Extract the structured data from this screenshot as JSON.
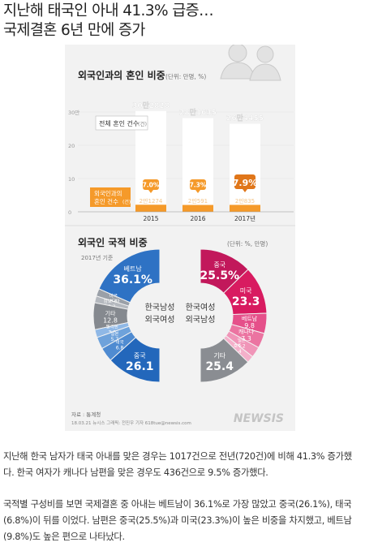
{
  "headline": {
    "line1": "지난해 태국인 아내 41.3% 급증…",
    "line2": "국제결혼 6년 만에 증가"
  },
  "infographic": {
    "section1": {
      "title": "외국인과의 혼인 비중",
      "unit": "(단위: 만명, %)"
    },
    "section2": {
      "title": "외국인 국적 비중",
      "unit": "(단위: %, 만명)",
      "note": "2017년 기준"
    },
    "legend_total": "전체 혼인 건수",
    "legend_total_unit": "(건)",
    "legend_foreign_line1": "외국인과의",
    "legend_foreign_line2": "혼인 건수",
    "legend_foreign_unit": "(건)",
    "source": "자료 : 통계청",
    "credit": "18.03.21 뉴시스 그래픽: 전진우 기자 618tue@newsis.com",
    "watermark": "NEWSIS",
    "donut_left_center_1": "한국남성",
    "donut_left_center_2": "외국여성",
    "donut_right_center_1": "한국여성",
    "donut_right_center_2": "외국남성"
  },
  "chart_data": [
    {
      "type": "bar",
      "title": "외국인과의 혼인 비중",
      "categories": [
        "2015",
        "2016",
        "2017년"
      ],
      "series": [
        {
          "name": "전체 혼인 건수",
          "values": [
            302828,
            281635,
            264455
          ],
          "labels": [
            "30만2828",
            "28만1635",
            "26만4455"
          ]
        },
        {
          "name": "외국인과의 혼인 건수",
          "values": [
            21274,
            20591,
            20835
          ],
          "labels": [
            "2만1274",
            "2만591",
            "2만835"
          ]
        }
      ],
      "share_pct": [
        7.0,
        7.3,
        7.9
      ],
      "share_labels": [
        "7.0%",
        "7.3%",
        "7.9%"
      ],
      "yticks": [
        "30만",
        "20",
        "10",
        "0"
      ],
      "ylim": [
        0,
        300000
      ]
    },
    {
      "type": "pie",
      "title": "한국남성 외국여성",
      "slices": [
        {
          "label": "베트남",
          "value": 36.1,
          "value_label": "36.1%",
          "color": "#2e72c4"
        },
        {
          "label": "미국",
          "value": 3.6,
          "value_label": "3.6",
          "color": "#9aa0a8"
        },
        {
          "label": "캄보디아",
          "value": 3.2,
          "value_label": "3.2",
          "color": "#b4b8be"
        },
        {
          "label": "기타",
          "value": 12.8,
          "value_label": "12.8",
          "color": "#85898f"
        },
        {
          "label": "필리핀",
          "value": 3.8,
          "value_label": "3.8",
          "color": "#8fb8e6"
        },
        {
          "label": "일본",
          "value": 5.7,
          "value_label": "5.7",
          "color": "#6ea2db"
        },
        {
          "label": "태국",
          "value": 6.8,
          "value_label": "6.8",
          "color": "#4f8bd1"
        },
        {
          "label": "중국",
          "value": 26.1,
          "value_label": "26.1",
          "color": "#2367bb"
        }
      ]
    },
    {
      "type": "pie",
      "title": "한국여성 외국남성",
      "slices": [
        {
          "label": "중국",
          "value": 25.5,
          "value_label": "25.5%",
          "color": "#c2185b"
        },
        {
          "label": "미국",
          "value": 23.3,
          "value_label": "23.3",
          "color": "#d81b60"
        },
        {
          "label": "베트남",
          "value": 9.8,
          "value_label": "9.8",
          "color": "#e5508a"
        },
        {
          "label": "캐나다",
          "value": 7.3,
          "value_label": "7.3",
          "color": "#eb74a1"
        },
        {
          "label": "일본",
          "value": 5.2,
          "value_label": "5.2",
          "color": "#f095b8"
        },
        {
          "label": "호주",
          "value": 3.4,
          "value_label": "3.4",
          "color": "#f4b0ca"
        },
        {
          "label": "기타",
          "value": 25.4,
          "value_label": "25.4",
          "color": "#8a8d92"
        }
      ]
    }
  ],
  "body": {
    "p1": "지난해 한국 남자가 태국 아내를 맞은 경우는 1017건으로 전년(720건)에 비해 41.3% 증가했다. 한국 여자가 캐나다 남편을 맞은 경우도 436건으로 9.5% 증가했다.",
    "p2": "국적별 구성비를 보면 국제결혼 중 아내는 베트남이 36.1%로 가장 많았고 중국(26.1%), 태국(6.8%)이 뒤를 이었다. 남편은 중국(25.5%)과 미국(23.3%)이 높은 비중을 차지했고, 베트남(9.8%)도 높은 편으로 나타났다."
  },
  "colors": {
    "orange": "#f59a2a",
    "orange_dark": "#e0761a",
    "blue": "#2e72c4",
    "pink": "#c2185b",
    "gray": "#8a8d92"
  }
}
